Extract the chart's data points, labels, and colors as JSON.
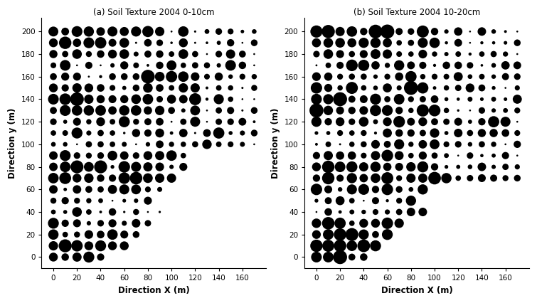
{
  "title_a": "(a) Soil Texture 2004 0-10cm",
  "title_b": "(b) Soil Texture 2004 10-20cm",
  "xlabel": "Direction X (m)",
  "ylabel": "Direction y (m)",
  "xticks": [
    0,
    20,
    40,
    60,
    80,
    100,
    120,
    140,
    160
  ],
  "yticks": [
    0,
    20,
    40,
    60,
    80,
    100,
    120,
    140,
    160,
    180,
    200
  ],
  "bg_color": "#ffffff",
  "dot_color": "#000000",
  "min_marker": 3,
  "max_marker": 200
}
